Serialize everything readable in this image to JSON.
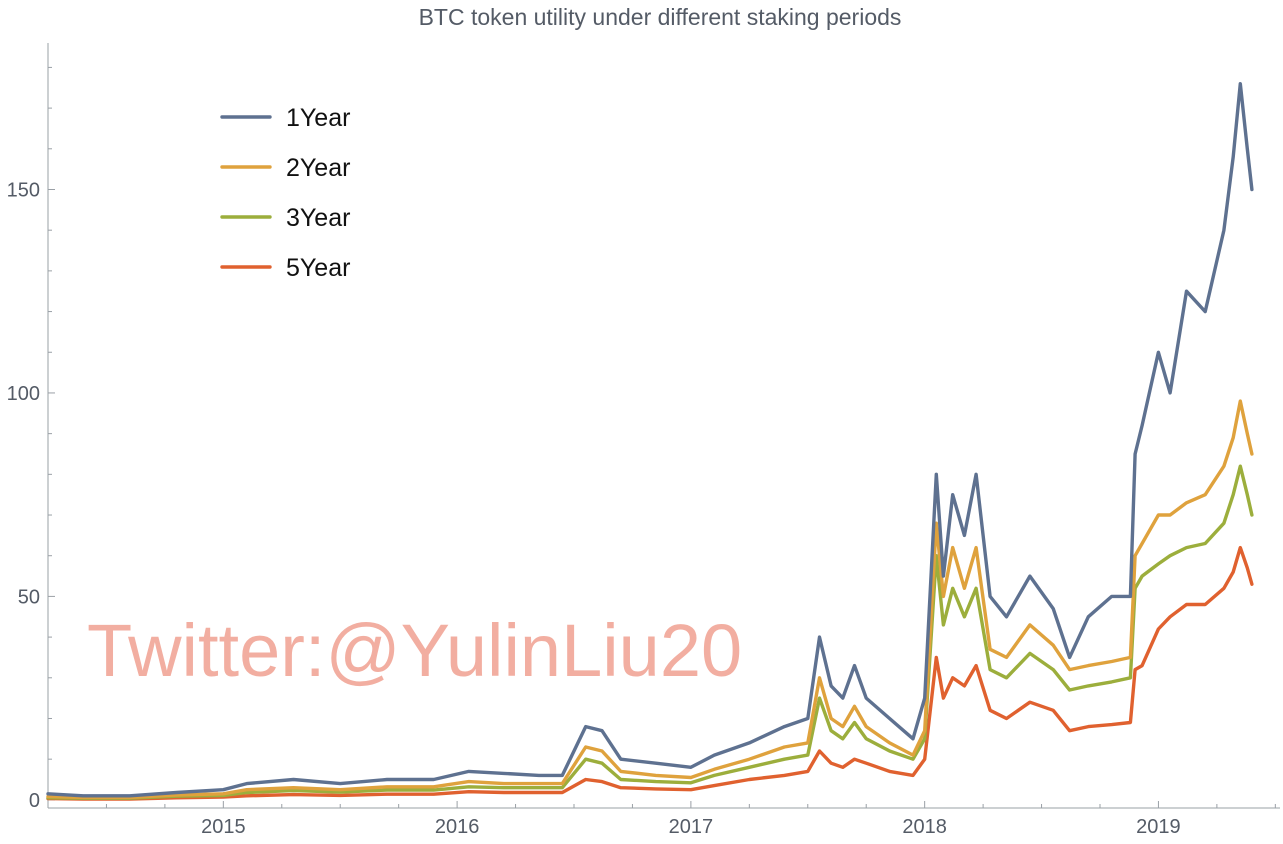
{
  "chart_data": {
    "type": "line",
    "title": "BTC token utility under different staking periods",
    "xlabel": "",
    "ylabel": "",
    "xlim": [
      2014.25,
      2019.52
    ],
    "ylim": [
      -2,
      186
    ],
    "x_ticks": [
      2015,
      2016,
      2017,
      2018,
      2019
    ],
    "x_tick_labels": [
      "2015",
      "2016",
      "2017",
      "2018",
      "2019"
    ],
    "y_ticks": [
      0,
      50,
      100,
      150
    ],
    "y_tick_labels": [
      "0",
      "50",
      "100",
      "150"
    ],
    "grid": false,
    "legend": {
      "placement": "top-left"
    },
    "annotation": "Twitter:@YulinLiu20",
    "x": [
      2014.25,
      2014.4,
      2014.6,
      2014.8,
      2015.0,
      2015.1,
      2015.3,
      2015.5,
      2015.7,
      2015.9,
      2016.05,
      2016.2,
      2016.35,
      2016.45,
      2016.55,
      2016.62,
      2016.7,
      2016.85,
      2017.0,
      2017.1,
      2017.25,
      2017.4,
      2017.5,
      2017.55,
      2017.6,
      2017.65,
      2017.7,
      2017.75,
      2017.85,
      2017.95,
      2018.0,
      2018.05,
      2018.08,
      2018.12,
      2018.17,
      2018.22,
      2018.28,
      2018.35,
      2018.45,
      2018.55,
      2018.62,
      2018.7,
      2018.8,
      2018.88,
      2018.9,
      2018.93,
      2019.0,
      2019.05,
      2019.12,
      2019.2,
      2019.28,
      2019.32,
      2019.35,
      2019.38,
      2019.4
    ],
    "series": [
      {
        "name": "1Year",
        "color": "#5e7190",
        "values": [
          1.5,
          1,
          1,
          1.8,
          2.5,
          4,
          5,
          4,
          5,
          5,
          7,
          6.5,
          6,
          6,
          18,
          17,
          10,
          9,
          8,
          11,
          14,
          18,
          20,
          40,
          28,
          25,
          33,
          25,
          20,
          15,
          25,
          80,
          55,
          75,
          65,
          80,
          50,
          45,
          55,
          47,
          35,
          45,
          50,
          50,
          85,
          92,
          110,
          100,
          125,
          120,
          140,
          158,
          176,
          160,
          150
        ]
      },
      {
        "name": "2Year",
        "color": "#dfa23d",
        "values": [
          0.8,
          0.6,
          0.6,
          1.2,
          1.5,
          2.5,
          3,
          2.5,
          3.2,
          3.2,
          4.5,
          4,
          4,
          4,
          13,
          12,
          7,
          6,
          5.5,
          7.5,
          10,
          13,
          14,
          30,
          20,
          18,
          23,
          18,
          14,
          11,
          17,
          68,
          50,
          62,
          52,
          62,
          37,
          35,
          43,
          38,
          32,
          33,
          34,
          35,
          60,
          63,
          70,
          70,
          73,
          75,
          82,
          89,
          98,
          90,
          85
        ]
      },
      {
        "name": "3Year",
        "color": "#9cae3c",
        "values": [
          0.5,
          0.4,
          0.4,
          0.9,
          1.1,
          1.8,
          2.3,
          1.9,
          2.4,
          2.4,
          3.2,
          3,
          3,
          3,
          10,
          9,
          5,
          4.5,
          4.2,
          6,
          8,
          10,
          11,
          25,
          17,
          15,
          19,
          15,
          12,
          10,
          15,
          60,
          43,
          52,
          45,
          52,
          32,
          30,
          36,
          32,
          27,
          28,
          29,
          30,
          52,
          55,
          58,
          60,
          62,
          63,
          68,
          75,
          82,
          75,
          70
        ]
      },
      {
        "name": "5Year",
        "color": "#e0612f",
        "values": [
          0.3,
          0.2,
          0.2,
          0.5,
          0.7,
          1,
          1.3,
          1.1,
          1.4,
          1.4,
          2,
          1.8,
          1.8,
          1.8,
          5,
          4.5,
          3,
          2.7,
          2.5,
          3.5,
          5,
          6,
          7,
          12,
          9,
          8,
          10,
          9,
          7,
          6,
          10,
          35,
          25,
          30,
          28,
          33,
          22,
          20,
          24,
          22,
          17,
          18,
          18.5,
          19,
          32,
          33,
          42,
          45,
          48,
          48,
          52,
          56,
          62,
          57,
          53
        ]
      }
    ]
  }
}
